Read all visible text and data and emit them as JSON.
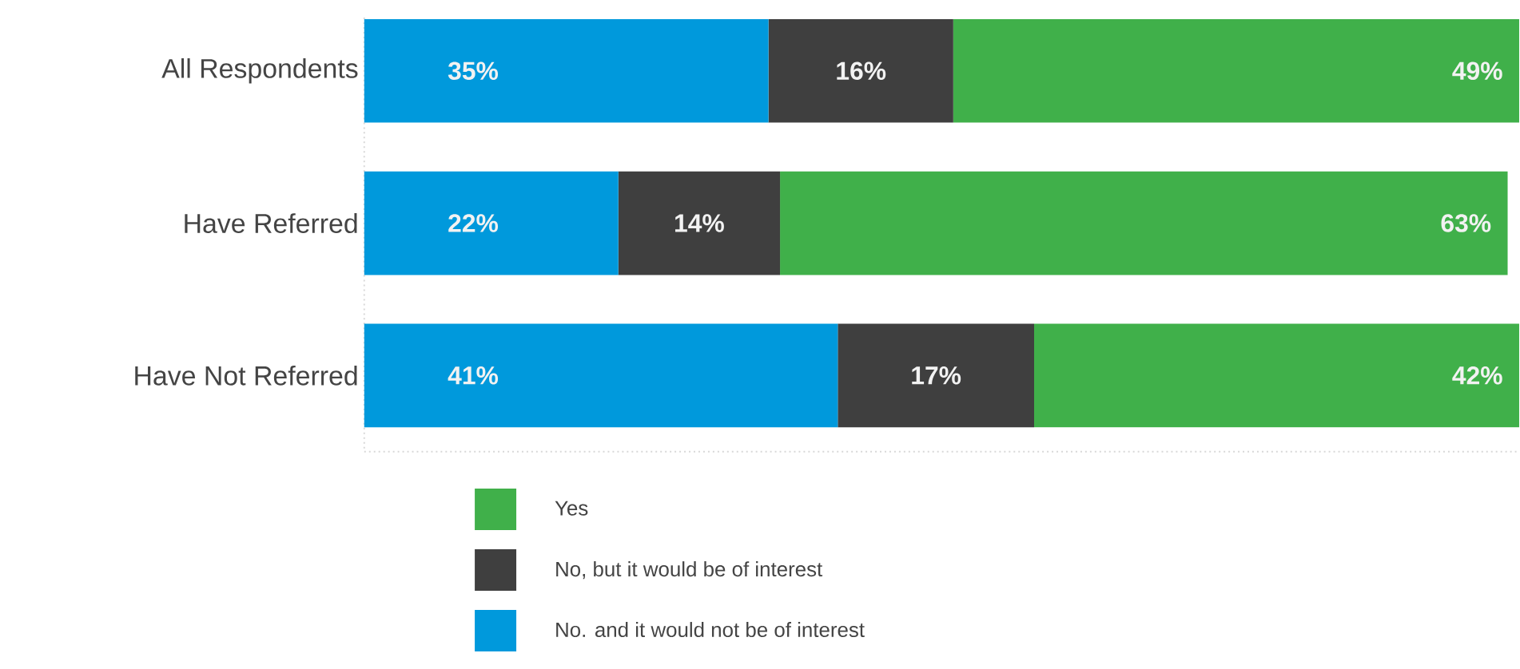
{
  "chart_data": {
    "type": "bar",
    "orientation": "horizontal",
    "stacked": true,
    "categories": [
      "All Respondents",
      "Have Referred",
      "Have Not Referred"
    ],
    "xlim": [
      0,
      100
    ],
    "tick_labels": "y",
    "legend": "bottom",
    "grid": false,
    "series": [
      {
        "name": "No. and it would not be of interest",
        "color": "#0099dc",
        "values": [
          35,
          22,
          41
        ],
        "value_labels": [
          "35%",
          "22%",
          "41%"
        ]
      },
      {
        "name": "No, but it would be of interest",
        "color": "#3f3f3f",
        "values": [
          16,
          14,
          17
        ],
        "value_labels": [
          "16%",
          "14%",
          "17%"
        ]
      },
      {
        "name": "Yes",
        "color": "#40b04a",
        "values": [
          49,
          63,
          42
        ],
        "value_labels": [
          "49%",
          "63%",
          "42%"
        ]
      }
    ]
  }
}
